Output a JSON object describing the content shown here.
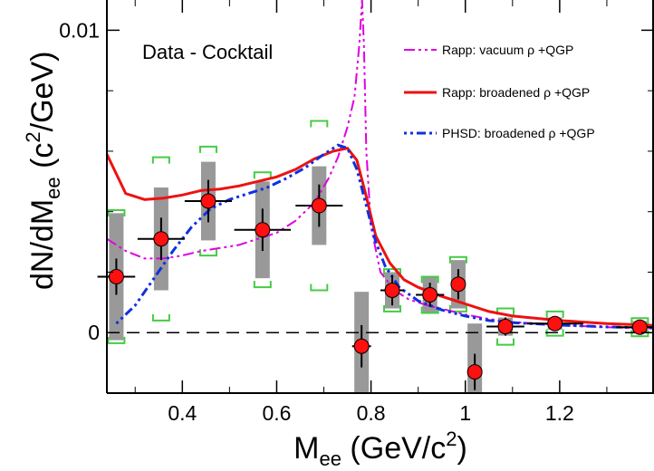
{
  "chart_data": {
    "type": "scatter",
    "title": "",
    "annotation": "Data - Cocktail",
    "xlabel": {
      "main": "M",
      "sub": "ee",
      "unit_open": " (GeV/c",
      "unit_sup": "2",
      "unit_close": ")"
    },
    "ylabel": {
      "main": "dN/dM",
      "sub": "ee",
      "unit_open": " (c",
      "unit_sup": "2",
      "unit_close": "/GeV)"
    },
    "xlim": [
      0.24,
      1.4
    ],
    "ylim": [
      -0.002,
      0.011
    ],
    "x_ticks": [
      {
        "value": 0.4,
        "label": "0.4"
      },
      {
        "value": 0.6,
        "label": "0.6"
      },
      {
        "value": 0.8,
        "label": "0.8"
      },
      {
        "value": 1.0,
        "label": "1"
      },
      {
        "value": 1.2,
        "label": "1.2"
      }
    ],
    "y_ticks": [
      {
        "value": 0.0,
        "label": "0"
      },
      {
        "value": 0.01,
        "label": "0.01"
      }
    ],
    "zero_line": 0.0,
    "data_points": [
      {
        "x": 0.26,
        "xerr": 0.04,
        "y": 0.00185,
        "yerr": 0.0006,
        "sys": 0.0021,
        "model_err": 0.0022
      },
      {
        "x": 0.355,
        "xerr": 0.05,
        "y": 0.0031,
        "yerr": 0.0007,
        "sys": 0.0017,
        "model_err": 0.0027
      },
      {
        "x": 0.455,
        "xerr": 0.05,
        "y": 0.00435,
        "yerr": 0.0007,
        "sys": 0.0013,
        "model_err": 0.0018
      },
      {
        "x": 0.57,
        "xerr": 0.06,
        "y": 0.0034,
        "yerr": 0.0007,
        "sys": 0.0016,
        "model_err": 0.0019
      },
      {
        "x": 0.69,
        "xerr": 0.05,
        "y": 0.0042,
        "yerr": 0.0007,
        "sys": 0.0013,
        "model_err": 0.0028
      },
      {
        "x": 0.78,
        "xerr": 0.02,
        "y": -0.00045,
        "yerr": 0.0007,
        "sys": 0.0018,
        "model_err": 0.0
      },
      {
        "x": 0.845,
        "xerr": 0.025,
        "y": 0.0014,
        "yerr": 0.0005,
        "sys": 0.0006,
        "model_err": 0.0007
      },
      {
        "x": 0.925,
        "xerr": 0.03,
        "y": 0.00125,
        "yerr": 0.0004,
        "sys": 0.0006,
        "model_err": 0.0006
      },
      {
        "x": 0.985,
        "xerr": 0.015,
        "y": 0.0016,
        "yerr": 0.0005,
        "sys": 0.0008,
        "model_err": 0.0009
      },
      {
        "x": 1.02,
        "xerr": 0.015,
        "y": -0.0013,
        "yerr": 0.0006,
        "sys": 0.0016,
        "model_err": 0.0
      },
      {
        "x": 1.085,
        "xerr": 0.04,
        "y": 0.0002,
        "yerr": 0.0003,
        "sys": 0.0003,
        "model_err": 0.0006
      },
      {
        "x": 1.19,
        "xerr": 0.06,
        "y": 0.0003,
        "yerr": 0.0002,
        "sys": 0.0002,
        "model_err": 0.0004
      },
      {
        "x": 1.37,
        "xerr": 0.05,
        "y": 0.00018,
        "yerr": 0.0002,
        "sys": 0.0002,
        "model_err": 0.0003
      }
    ],
    "series": [
      {
        "name": "Rapp: vacuum ρ +QGP",
        "color": "#e000e0",
        "dash": "12,4,3,4,3,4",
        "width": 2,
        "points": [
          [
            0.24,
            0.0031
          ],
          [
            0.28,
            0.0027
          ],
          [
            0.32,
            0.00245
          ],
          [
            0.36,
            0.00245
          ],
          [
            0.4,
            0.00255
          ],
          [
            0.44,
            0.0027
          ],
          [
            0.48,
            0.0028
          ],
          [
            0.52,
            0.0029
          ],
          [
            0.56,
            0.0031
          ],
          [
            0.6,
            0.0033
          ],
          [
            0.64,
            0.0037
          ],
          [
            0.68,
            0.0043
          ],
          [
            0.71,
            0.0051
          ],
          [
            0.73,
            0.0058
          ],
          [
            0.75,
            0.0068
          ],
          [
            0.765,
            0.0078
          ],
          [
            0.775,
            0.0095
          ],
          [
            0.781,
            0.011
          ],
          [
            0.785,
            0.0095
          ],
          [
            0.79,
            0.006
          ],
          [
            0.8,
            0.0035
          ],
          [
            0.82,
            0.002
          ],
          [
            0.85,
            0.0014
          ],
          [
            0.88,
            0.0011
          ],
          [
            0.92,
            0.0009
          ],
          [
            0.96,
            0.00075
          ],
          [
            1.0,
            0.0006
          ],
          [
            1.05,
            0.00045
          ],
          [
            1.1,
            0.00035
          ],
          [
            1.2,
            0.00025
          ],
          [
            1.3,
            0.00018
          ],
          [
            1.4,
            0.00014
          ]
        ]
      },
      {
        "name": "Rapp: broadened ρ +QGP",
        "color": "#ee1111",
        "dash": "",
        "width": 3,
        "points": [
          [
            0.24,
            0.0059
          ],
          [
            0.28,
            0.0046
          ],
          [
            0.32,
            0.0044
          ],
          [
            0.36,
            0.00445
          ],
          [
            0.4,
            0.00455
          ],
          [
            0.44,
            0.0047
          ],
          [
            0.48,
            0.00475
          ],
          [
            0.52,
            0.00485
          ],
          [
            0.56,
            0.005
          ],
          [
            0.6,
            0.00515
          ],
          [
            0.64,
            0.0054
          ],
          [
            0.68,
            0.00575
          ],
          [
            0.72,
            0.006
          ],
          [
            0.75,
            0.0061
          ],
          [
            0.77,
            0.0057
          ],
          [
            0.79,
            0.0045
          ],
          [
            0.81,
            0.0032
          ],
          [
            0.84,
            0.0023
          ],
          [
            0.87,
            0.00175
          ],
          [
            0.9,
            0.0015
          ],
          [
            0.95,
            0.0012
          ],
          [
            1.0,
            0.00095
          ],
          [
            1.05,
            0.0007
          ],
          [
            1.1,
            0.00055
          ],
          [
            1.2,
            0.0004
          ],
          [
            1.3,
            0.0003
          ],
          [
            1.4,
            0.00024
          ]
        ]
      },
      {
        "name": "PHSD: broadened ρ +QGP",
        "color": "#1030e0",
        "dash": "3,4,3,4,10,4",
        "width": 3,
        "points": [
          [
            0.26,
            0.0003
          ],
          [
            0.3,
            0.0009
          ],
          [
            0.34,
            0.0018
          ],
          [
            0.38,
            0.0027
          ],
          [
            0.42,
            0.0035
          ],
          [
            0.46,
            0.0041
          ],
          [
            0.5,
            0.0044
          ],
          [
            0.54,
            0.0046
          ],
          [
            0.58,
            0.0048
          ],
          [
            0.62,
            0.0051
          ],
          [
            0.66,
            0.00545
          ],
          [
            0.7,
            0.0059
          ],
          [
            0.73,
            0.0062
          ],
          [
            0.75,
            0.0061
          ],
          [
            0.77,
            0.0054
          ],
          [
            0.79,
            0.0042
          ],
          [
            0.81,
            0.003
          ],
          [
            0.83,
            0.0022
          ],
          [
            0.86,
            0.0015
          ],
          [
            0.9,
            0.00105
          ],
          [
            0.95,
            0.00075
          ],
          [
            1.0,
            0.00055
          ],
          [
            1.05,
            0.0004
          ],
          [
            1.1,
            0.00033
          ],
          [
            1.2,
            0.00025
          ],
          [
            1.3,
            0.00019
          ],
          [
            1.4,
            0.00015
          ]
        ]
      }
    ],
    "colors": {
      "marker_fill": "#ff1010",
      "marker_stroke": "#000000",
      "sys_box": "#999999",
      "bracket": "#44cc44"
    },
    "legend_position": "top-right"
  }
}
